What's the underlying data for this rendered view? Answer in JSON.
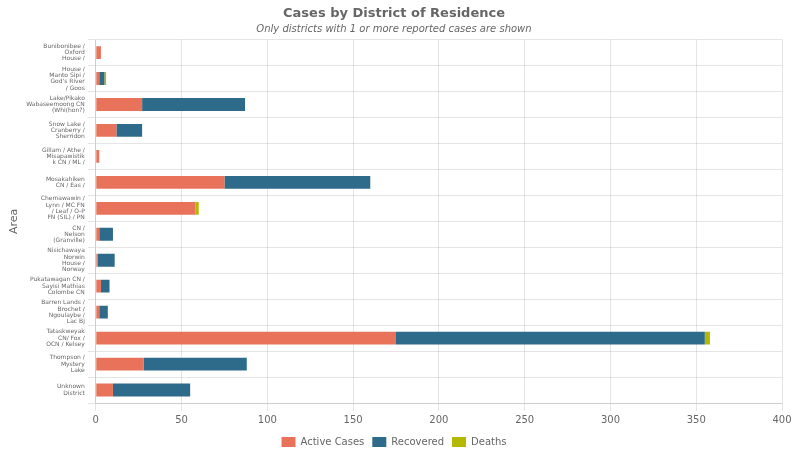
{
  "chart_data": {
    "type": "bar",
    "orientation": "horizontal",
    "stacked": true,
    "title": "Cases by District of Residence",
    "subtitle": "Only districts with 1 or more reported cases are shown",
    "ylabel": "Area",
    "categories": [
      "Bunibonibee /\nOxford\nHouse /",
      "House /\nManto Sipi /\nGod's River\n/ Goos",
      "Lake/Pikako\nWabaseemoong CN\n(Whi(hon?)",
      "Snow Lake /\nCranberry /\nSherridon",
      "Gillam / Athe /\nMisapawistik\nk CN / ML /",
      "Mosakahiken\nCN / Eas /",
      "Chemawawin /\nLynn / MC FN\n/ Leaf / O-P\nFN (SIL) / PN",
      "CN /\nNelson\n(Granville)",
      "Nisichawaya\nNorwin\nHouse /\nNorway",
      "Pukatawagan CN /\nSayisi Mathias\nColombe CN",
      "Barren Lands /\nBrochet /\nNgoulaybe /\nLac Bj",
      "Tataskweyak\nCN/ Fox /\nOCN / Kelsey",
      "Thompson /\nMystery\nLake",
      "Unknown\nDistrict"
    ],
    "series": [
      {
        "name": "Active Cases",
        "color": "#E8735A",
        "values": [
          3,
          2,
          27,
          12,
          2,
          75,
          58,
          2,
          1,
          3,
          2,
          175,
          28,
          10
        ]
      },
      {
        "name": "Recovered",
        "color": "#2E6B8A",
        "values": [
          0,
          3,
          60,
          15,
          0,
          85,
          0,
          8,
          10,
          5,
          5,
          180,
          60,
          45
        ]
      },
      {
        "name": "Deaths",
        "color": "#B5B800",
        "values": [
          0,
          1,
          0,
          0,
          0,
          0,
          2,
          0,
          0,
          0,
          0,
          3,
          0,
          0
        ]
      }
    ],
    "xlim": [
      0,
      400
    ],
    "xticks": [
      0,
      50,
      100,
      150,
      200,
      250,
      300,
      350,
      400
    ],
    "grid": true,
    "legend": "bottom"
  }
}
